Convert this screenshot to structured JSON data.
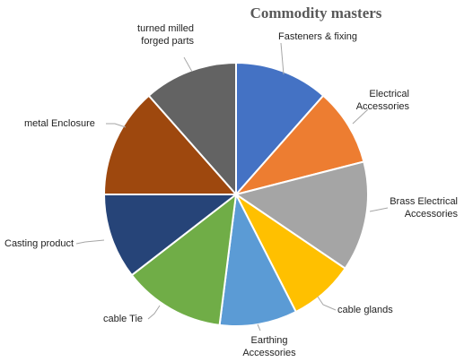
{
  "chart_data": {
    "type": "pie",
    "title": "Commodity masters",
    "start_angle_deg": 0,
    "direction": "clockwise",
    "slices": [
      {
        "label": "Fasteners & fixing",
        "value": 11.5,
        "color": "#4472C4"
      },
      {
        "label": "Electrical Accessories",
        "value": 9.5,
        "color": "#ED7D31"
      },
      {
        "label": "Brass Electrical Accessories",
        "value": 13.5,
        "color": "#A5A5A5"
      },
      {
        "label": "cable glands",
        "value": 8.0,
        "color": "#FFC000"
      },
      {
        "label": "Earthing Accessories",
        "value": 9.5,
        "color": "#5B9BD5"
      },
      {
        "label": "cable Tie",
        "value": 12.5,
        "color": "#70AD47"
      },
      {
        "label": "Casting product",
        "value": 10.5,
        "color": "#264478"
      },
      {
        "label": "metal Enclosure",
        "value": 13.5,
        "color": "#9E480E"
      },
      {
        "label": "turned milled forged parts",
        "value": 11.5,
        "color": "#636363"
      }
    ],
    "legend": "none",
    "data_labels": "outside-with-leaders"
  }
}
